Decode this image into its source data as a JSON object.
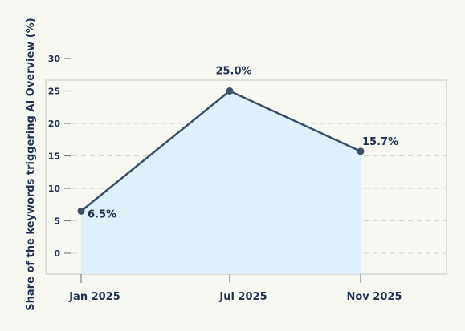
{
  "chart_data": {
    "type": "area",
    "categories": [
      "Jan 2025",
      "Jul 2025",
      "Nov 2025"
    ],
    "series": [
      {
        "values": [
          6.5,
          25.0,
          15.7
        ],
        "labels": [
          "6.5%",
          "25.0%",
          "15.7%"
        ]
      }
    ],
    "ylabel": "Share of the keywords triggering AI Overview (%)",
    "xlabel": "",
    "ylim": [
      0,
      30
    ],
    "yticks": [
      "0",
      "5",
      "10",
      "15",
      "20",
      "25",
      "30"
    ],
    "grid": true,
    "legend": "none",
    "colors": {
      "line": "#3b5068",
      "fill": "#dff0fb",
      "grid": "#cfd3d0",
      "frame": "#d5d9d2",
      "text": "#1f3150",
      "background": "#f7f8f1"
    }
  }
}
